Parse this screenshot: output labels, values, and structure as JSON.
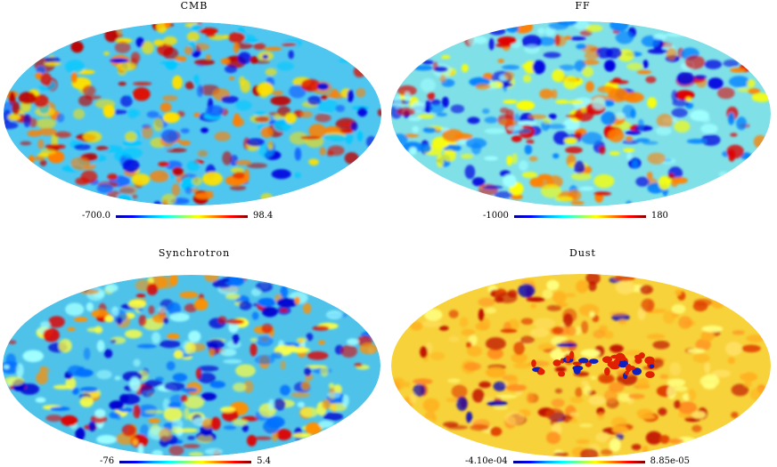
{
  "panels": [
    {
      "id": "cmb",
      "title": "CMB",
      "colorbar": {
        "min_label": "-700.0",
        "max_label": "98.4"
      },
      "base_color": "#4fc6f0"
    },
    {
      "id": "ff",
      "title": "FF",
      "colorbar": {
        "min_label": "-1000",
        "max_label": "180"
      },
      "base_color": "#7fe0e8"
    },
    {
      "id": "synchrotron",
      "title": "Synchrotron",
      "colorbar": {
        "min_label": "-76",
        "max_label": "5.4"
      },
      "base_color": "#4fc2ea"
    },
    {
      "id": "dust",
      "title": "Dust",
      "colorbar": {
        "min_label": "-4.10e-04",
        "max_label": "8.85e-05"
      },
      "base_color": "#f7d23a"
    }
  ],
  "colormap": [
    "#00008f",
    "#0000ff",
    "#00a0ff",
    "#00ffff",
    "#80ff80",
    "#ffff00",
    "#ff8000",
    "#ff0000",
    "#800000"
  ]
}
